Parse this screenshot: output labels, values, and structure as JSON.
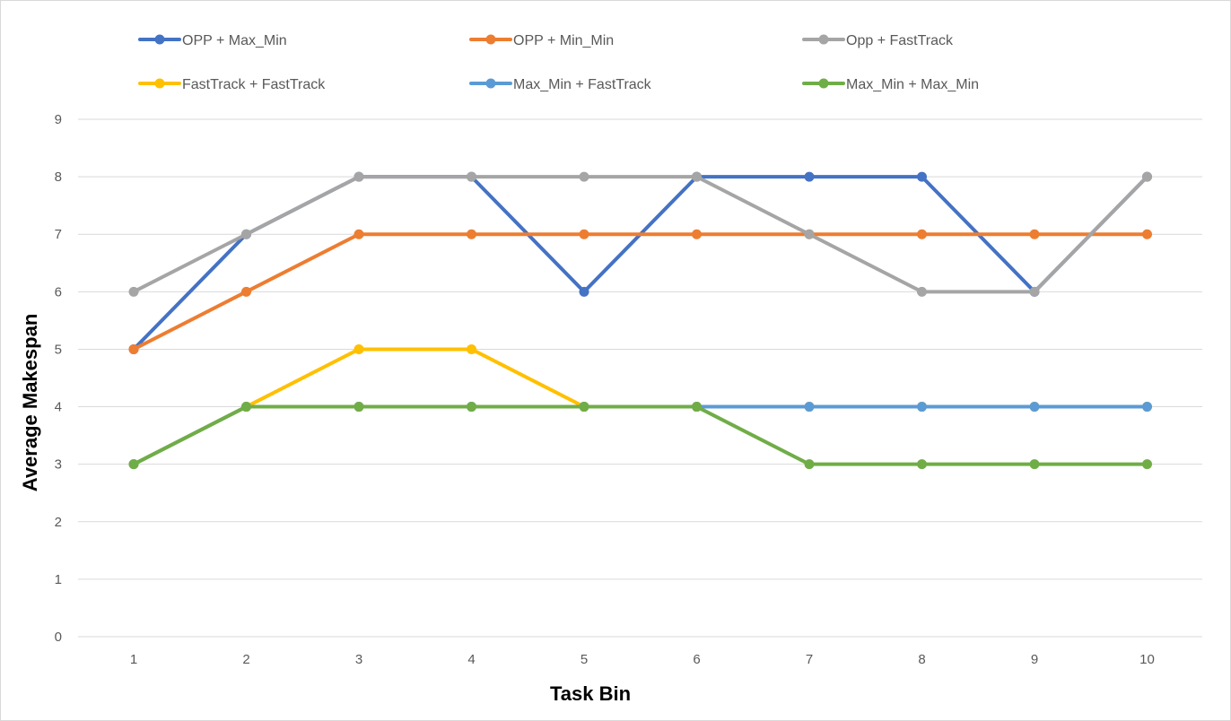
{
  "chart_data": {
    "type": "line",
    "xlabel": "Task Bin",
    "ylabel": "Average Makespan",
    "x": [
      1,
      2,
      3,
      4,
      5,
      6,
      7,
      8,
      9,
      10
    ],
    "ylim": [
      0,
      9
    ],
    "yticks": [
      0,
      1,
      2,
      3,
      4,
      5,
      6,
      7,
      8,
      9
    ],
    "grid": "horizontal",
    "legend_position": "top",
    "series": [
      {
        "name": "OPP + Max_Min",
        "color": "#4472C4",
        "values": [
          5,
          7,
          8,
          8,
          6,
          8,
          8,
          8,
          6,
          8
        ]
      },
      {
        "name": "OPP + Min_Min",
        "color": "#ED7D31",
        "values": [
          5,
          6,
          7,
          7,
          7,
          7,
          7,
          7,
          7,
          7
        ]
      },
      {
        "name": "Opp + FastTrack",
        "color": "#A5A5A5",
        "values": [
          6,
          7,
          8,
          8,
          8,
          8,
          7,
          6,
          6,
          8
        ]
      },
      {
        "name": "FastTrack + FastTrack",
        "color": "#FFC000",
        "values": [
          3,
          4,
          5,
          5,
          4,
          4,
          4,
          4,
          4,
          4
        ]
      },
      {
        "name": "Max_Min + FastTrack",
        "color": "#5B9BD5",
        "values": [
          3,
          4,
          4,
          4,
          4,
          4,
          4,
          4,
          4,
          4
        ]
      },
      {
        "name": "Max_Min + Max_Min",
        "color": "#70AD47",
        "values": [
          3,
          4,
          4,
          4,
          4,
          4,
          3,
          3,
          3,
          3
        ]
      }
    ]
  }
}
